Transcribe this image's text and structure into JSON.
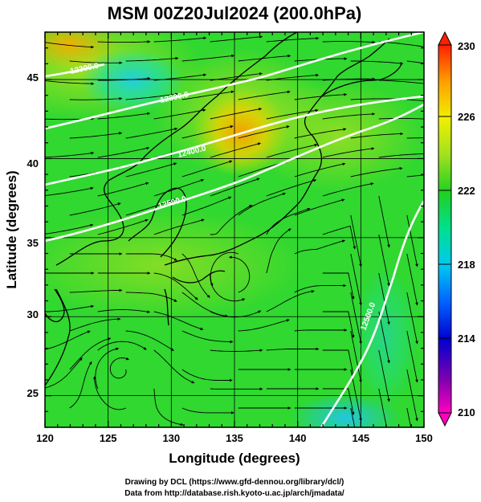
{
  "title": "MSM 00Z20Jul2024 (200.0hPa)",
  "map": {
    "xlabel": "Longitude (degrees)",
    "ylabel": "Latitude  (degrees)",
    "lon_range": [
      120,
      150
    ],
    "lat_range": [
      23,
      48
    ],
    "lon_ticks": [
      "120",
      "125",
      "130",
      "135",
      "140",
      "145",
      "150"
    ],
    "lat_ticks": [
      "25",
      "30",
      "35",
      "40",
      "45"
    ],
    "field": "temperature-like shading with streamlines",
    "contour_labels": [
      "12300.0",
      "12300.0",
      "12400.0",
      "12500.0",
      "12500.0"
    ]
  },
  "colorbar": {
    "ticks": [
      "230",
      "226",
      "222",
      "218",
      "214",
      "210"
    ],
    "range": [
      210,
      230
    ],
    "colors": [
      "#ff00c0",
      "#5000b0",
      "#0000d0",
      "#0070ff",
      "#00d0f0",
      "#00e090",
      "#20d020",
      "#a0e020",
      "#f0f000",
      "#ffb000",
      "#ff4000",
      "#ff0000"
    ]
  },
  "footer": {
    "line1": "Drawing by DCL (https://www.gfd-dennou.org/library/dcl/)",
    "line2": "Data from http://database.rish.kyoto-u.ac.jp/arch/jmadata/"
  }
}
